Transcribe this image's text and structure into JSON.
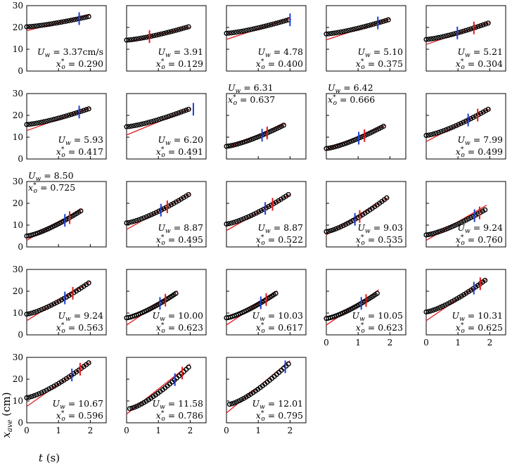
{
  "figure": {
    "x_label": "t (s)",
    "y_label": "x_ave (cm)"
  },
  "chart_data": {
    "type": "scatter",
    "grid": false,
    "xlim": [
      0,
      2.5
    ],
    "ylim": [
      0,
      30
    ],
    "x_ticks": [
      "0",
      "1",
      "2"
    ],
    "y_ticks": [
      "0",
      "10",
      "20",
      "30"
    ],
    "xlabel": "t (s)",
    "ylabel": "x_ave (cm)",
    "colors": {
      "markers": "#000000",
      "fit": "#e41a1c",
      "blue_marker": "#1f3fd6",
      "red_marker": "#e41a1c"
    },
    "panels": [
      {
        "uw": "U_w = 3.37cm/s",
        "xo": "x*_o = 0.290",
        "t0": 0.0,
        "t1": 1.95,
        "y0": 20.3,
        "y1": 25.0,
        "fit_start": 18.5,
        "fit_slope": 3.6,
        "blue": 1.65,
        "red": null,
        "label_pos": "lower-right",
        "show_y_ticks": true,
        "show_x_ticks": false
      },
      {
        "uw": "U_w = 3.91",
        "xo": "x*_o = 0.129",
        "t0": 0.0,
        "t1": 1.95,
        "y0": 14.2,
        "y1": 20.3,
        "fit_start": 13.2,
        "fit_slope": 3.5,
        "blue": null,
        "red": 0.72,
        "label_pos": "lower-right",
        "show_y_ticks": false,
        "show_x_ticks": false
      },
      {
        "uw": "U_w = 4.78",
        "xo": "x*_o = 0.400",
        "t0": 0.0,
        "t1": 1.95,
        "y0": 17.3,
        "y1": 23.5,
        "fit_start": 14.5,
        "fit_slope": 4.8,
        "blue": 2.0,
        "red": null,
        "label_pos": "lower-right",
        "show_y_ticks": false,
        "show_x_ticks": false
      },
      {
        "uw": "U_w = 5.10",
        "xo": "x*_o = 0.375",
        "t0": 0.0,
        "t1": 1.95,
        "y0": 17.0,
        "y1": 23.5,
        "fit_start": 14.3,
        "fit_slope": 4.8,
        "blue": 1.62,
        "red": null,
        "label_pos": "lower-right",
        "show_y_ticks": false,
        "show_x_ticks": false
      },
      {
        "uw": "U_w = 5.21",
        "xo": "x*_o = 0.304",
        "t0": 0.0,
        "t1": 1.95,
        "y0": 14.5,
        "y1": 22.0,
        "fit_start": 12.2,
        "fit_slope": 5.0,
        "blue": 0.98,
        "red": 1.5,
        "label_pos": "lower-right",
        "show_y_ticks": false,
        "show_x_ticks": false
      },
      {
        "uw": "U_w = 5.93",
        "xo": "x*_o = 0.417",
        "t0": 0.0,
        "t1": 1.95,
        "y0": 15.8,
        "y1": 23.0,
        "fit_start": 13.0,
        "fit_slope": 5.2,
        "blue": 1.65,
        "red": null,
        "label_pos": "lower-right",
        "show_y_ticks": true,
        "show_x_ticks": false
      },
      {
        "uw": "U_w = 6.20",
        "xo": "x*_o = 0.491",
        "t0": 0.0,
        "t1": 1.95,
        "y0": 14.8,
        "y1": 22.8,
        "fit_start": 11.0,
        "fit_slope": 6.0,
        "blue": 2.1,
        "red": null,
        "label_pos": "lower-right",
        "show_y_ticks": false,
        "show_x_ticks": false
      },
      {
        "uw": "U_w = 6.31",
        "xo": "x*_o = 0.637",
        "t0": 0.0,
        "t1": 1.8,
        "y0": 5.8,
        "y1": 15.5,
        "fit_start": 5.0,
        "fit_slope": 6.0,
        "blue": 1.12,
        "red": 1.28,
        "label_pos": "upper-left",
        "show_y_ticks": false,
        "show_x_ticks": false
      },
      {
        "uw": "U_w = 6.42",
        "xo": "x*_o = 0.666",
        "t0": 0.0,
        "t1": 1.8,
        "y0": 4.8,
        "y1": 15.0,
        "fit_start": 4.2,
        "fit_slope": 6.1,
        "blue": 1.02,
        "red": 1.2,
        "label_pos": "upper-left",
        "show_y_ticks": false,
        "show_x_ticks": false
      },
      {
        "uw": "U_w = 7.99",
        "xo": "x*_o = 0.499",
        "t0": 0.0,
        "t1": 1.95,
        "y0": 10.8,
        "y1": 22.8,
        "fit_start": 8.0,
        "fit_slope": 7.5,
        "blue": 1.32,
        "red": 1.62,
        "label_pos": "lower-right",
        "show_y_ticks": false,
        "show_x_ticks": false
      },
      {
        "uw": "U_w = 8.50",
        "xo": "x*_o = 0.725",
        "t0": 0.0,
        "t1": 1.7,
        "y0": 5.0,
        "y1": 16.5,
        "fit_start": 3.0,
        "fit_slope": 8.2,
        "blue": 1.2,
        "red": 1.35,
        "label_pos": "upper-left",
        "show_y_ticks": true,
        "show_x_ticks": false
      },
      {
        "uw": "U_w = 8.87",
        "xo": "x*_o = 0.495",
        "t0": 0.0,
        "t1": 1.95,
        "y0": 11.0,
        "y1": 24.0,
        "fit_start": 8.0,
        "fit_slope": 8.2,
        "blue": 1.08,
        "red": 1.28,
        "label_pos": "lower-right",
        "show_y_ticks": false,
        "show_x_ticks": false
      },
      {
        "uw": "U_w = 8.87",
        "xo": "x*_o = 0.522",
        "t0": 0.0,
        "t1": 1.95,
        "y0": 10.5,
        "y1": 24.0,
        "fit_start": 7.5,
        "fit_slope": 8.3,
        "blue": 1.22,
        "red": 1.45,
        "label_pos": "lower-right",
        "show_y_ticks": false,
        "show_x_ticks": false
      },
      {
        "uw": "U_w = 9.03",
        "xo": "x*_o = 0.535",
        "t0": 0.0,
        "t1": 1.9,
        "y0": 7.0,
        "y1": 22.5,
        "fit_start": 5.5,
        "fit_slope": 8.8,
        "blue": 0.9,
        "red": 1.05,
        "label_pos": "lower-right",
        "show_y_ticks": false,
        "show_x_ticks": false
      },
      {
        "uw": "U_w = 9.24",
        "xo": "x*_o = 0.760",
        "t0": 0.0,
        "t1": 1.85,
        "y0": 5.5,
        "y1": 17.0,
        "fit_start": 3.0,
        "fit_slope": 8.5,
        "blue": 1.52,
        "red": 1.68,
        "label_pos": "lower-right",
        "show_y_ticks": false,
        "show_x_ticks": false
      },
      {
        "uw": "U_w = 9.24",
        "xo": "x*_o = 0.563",
        "t0": 0.0,
        "t1": 1.95,
        "y0": 9.5,
        "y1": 23.8,
        "fit_start": 6.5,
        "fit_slope": 9.0,
        "blue": 1.2,
        "red": 1.45,
        "label_pos": "lower-right",
        "show_y_ticks": true,
        "show_x_ticks": false
      },
      {
        "uw": "U_w = 10.00",
        "xo": "x*_o = 0.623",
        "t0": 0.0,
        "t1": 1.55,
        "y0": 7.8,
        "y1": 19.0,
        "fit_start": 4.5,
        "fit_slope": 9.8,
        "blue": 1.05,
        "red": 1.22,
        "label_pos": "lower-right",
        "show_y_ticks": false,
        "show_x_ticks": false
      },
      {
        "uw": "U_w = 10.03",
        "xo": "x*_o = 0.617",
        "t0": 0.0,
        "t1": 1.55,
        "y0": 7.8,
        "y1": 19.0,
        "fit_start": 4.5,
        "fit_slope": 9.8,
        "blue": 1.08,
        "red": 1.25,
        "label_pos": "lower-right",
        "show_y_ticks": false,
        "show_x_ticks": false
      },
      {
        "uw": "U_w = 10.05",
        "xo": "x*_o = 0.623",
        "t0": 0.0,
        "t1": 1.6,
        "y0": 7.5,
        "y1": 19.0,
        "fit_start": 4.5,
        "fit_slope": 9.8,
        "blue": 1.1,
        "red": 1.25,
        "label_pos": "lower-right",
        "show_y_ticks": false,
        "show_x_ticks": true
      },
      {
        "uw": "U_w = 10.31",
        "xo": "x*_o = 0.625",
        "t0": 0.0,
        "t1": 1.85,
        "y0": 10.5,
        "y1": 25.0,
        "fit_start": 6.5,
        "fit_slope": 10.0,
        "blue": 1.5,
        "red": 1.7,
        "label_pos": "lower-right",
        "show_y_ticks": false,
        "show_x_ticks": true
      },
      {
        "uw": "U_w = 10.67",
        "xo": "x*_o = 0.596",
        "t0": 0.0,
        "t1": 1.95,
        "y0": 11.5,
        "y1": 27.5,
        "fit_start": 7.5,
        "fit_slope": 10.2,
        "blue": 1.42,
        "red": 1.68,
        "label_pos": "lower-right",
        "show_y_ticks": true,
        "show_x_ticks": true
      },
      {
        "uw": "U_w = 11.58",
        "xo": "x*_o = 0.786",
        "t0": 0.1,
        "t1": 1.95,
        "y0": 6.5,
        "y1": 25.5,
        "fit_start": 4.0,
        "fit_slope": 11.5,
        "blue": 1.52,
        "red": 1.75,
        "label_pos": "lower-right",
        "show_y_ticks": false,
        "show_x_ticks": true
      },
      {
        "uw": "U_w = 12.01",
        "xo": "x*_o = 0.795",
        "t0": 0.1,
        "t1": 1.95,
        "y0": 8.5,
        "y1": 27.0,
        "fit_start": 4.5,
        "fit_slope": 12.0,
        "blue": 1.85,
        "red": null,
        "label_pos": "lower-right",
        "show_y_ticks": false,
        "show_x_ticks": true
      }
    ]
  }
}
